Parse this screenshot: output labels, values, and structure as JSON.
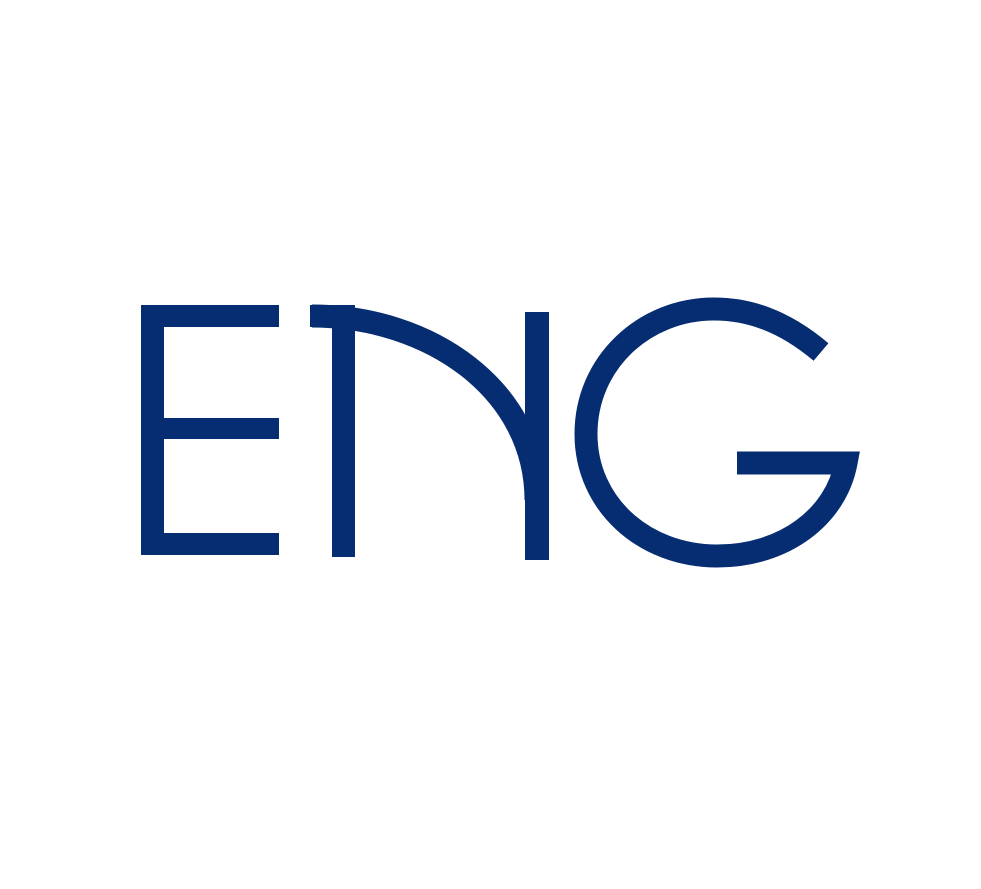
{
  "logo": {
    "text": "ENG",
    "brand_color": "#062c72",
    "background_color": "#ffffff"
  }
}
